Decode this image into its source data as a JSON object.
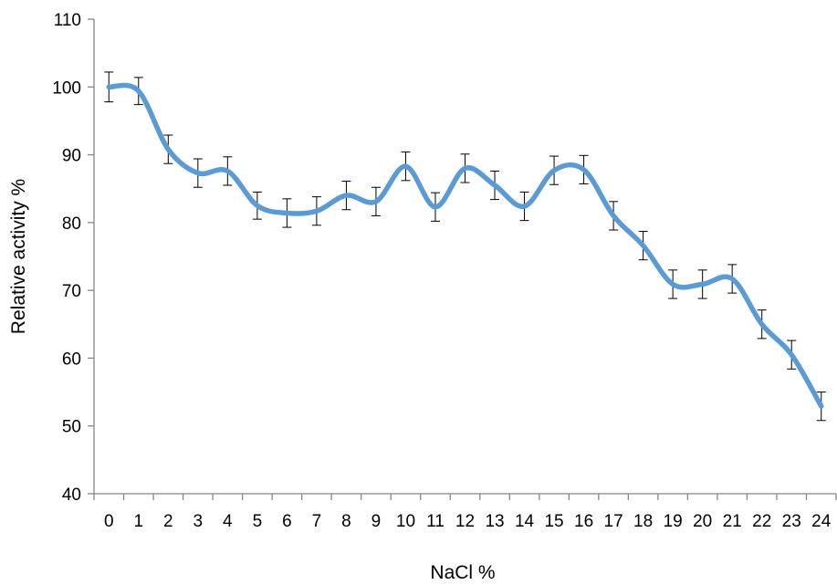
{
  "chart_data": {
    "type": "line",
    "xlabel": "NaCl %",
    "ylabel": "Relative activity %",
    "x": [
      0,
      1,
      2,
      3,
      4,
      5,
      6,
      7,
      8,
      9,
      10,
      11,
      12,
      13,
      14,
      15,
      16,
      17,
      18,
      19,
      20,
      21,
      22,
      23,
      24
    ],
    "series": [
      {
        "values": [
          100,
          99.4,
          90.8,
          87.3,
          87.6,
          82.5,
          81.4,
          81.7,
          84.0,
          83.1,
          88.3,
          82.3,
          88.0,
          85.5,
          82.4,
          87.7,
          87.8,
          81.0,
          76.6,
          70.9,
          70.9,
          71.7,
          65.0,
          60.5,
          52.9
        ],
        "errors": [
          2.2,
          2.0,
          2.1,
          2.1,
          2.1,
          2.0,
          2.1,
          2.1,
          2.1,
          2.1,
          2.1,
          2.1,
          2.1,
          2.1,
          2.1,
          2.1,
          2.1,
          2.1,
          2.1,
          2.1,
          2.1,
          2.1,
          2.1,
          2.1,
          2.1
        ],
        "color": "#5B9BD5"
      }
    ],
    "ylim": [
      40,
      110
    ],
    "yticks": [
      40,
      50,
      60,
      70,
      80,
      90,
      100,
      110
    ],
    "grid": false,
    "axis_color": "#868686",
    "smooth": true
  }
}
